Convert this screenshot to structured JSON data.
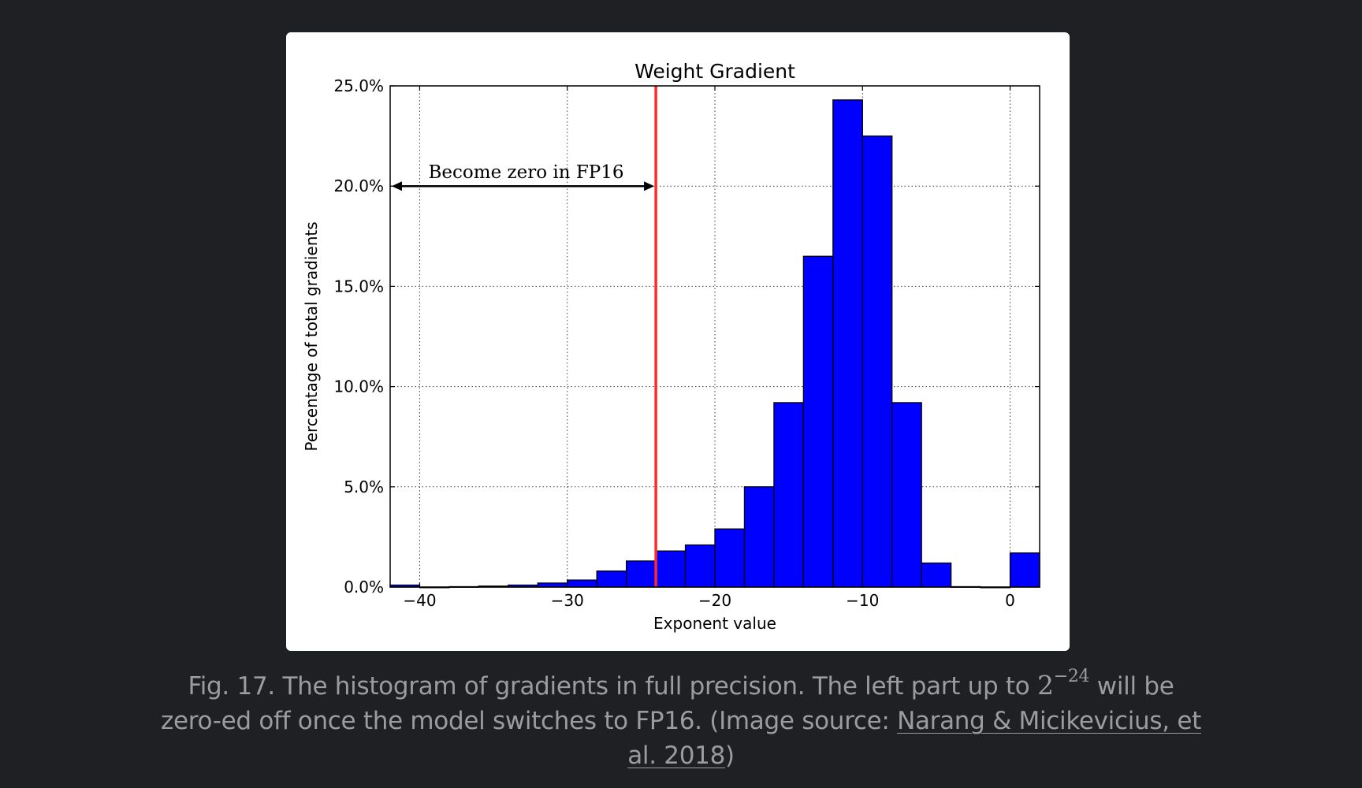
{
  "chart_data": {
    "type": "bar",
    "title": "Weight Gradient",
    "xlabel": "Exponent value",
    "ylabel": "Percentage of total gradients",
    "xlim": [
      -42,
      2
    ],
    "ylim": [
      0,
      25
    ],
    "grid": true,
    "grid_style": "dotted",
    "bar_color": "#0000ff",
    "bar_edge_color": "#000000",
    "xticks": [
      -40,
      -30,
      -20,
      -10,
      0
    ],
    "xtick_labels": [
      "−40",
      "−30",
      "−20",
      "−10",
      "0"
    ],
    "yticks": [
      0,
      5,
      10,
      15,
      20,
      25
    ],
    "ytick_labels": [
      "0.0%",
      "5.0%",
      "10.0%",
      "15.0%",
      "20.0%",
      "25.0%"
    ],
    "bin_width": 2,
    "bins": [
      {
        "x0": -42,
        "value": 0.1
      },
      {
        "x0": -40,
        "value": 0.0
      },
      {
        "x0": -38,
        "value": 0.02
      },
      {
        "x0": -36,
        "value": 0.05
      },
      {
        "x0": -34,
        "value": 0.1
      },
      {
        "x0": -32,
        "value": 0.2
      },
      {
        "x0": -30,
        "value": 0.35
      },
      {
        "x0": -28,
        "value": 0.8
      },
      {
        "x0": -26,
        "value": 1.3
      },
      {
        "x0": -24,
        "value": 1.8
      },
      {
        "x0": -22,
        "value": 2.1
      },
      {
        "x0": -20,
        "value": 2.9
      },
      {
        "x0": -18,
        "value": 5.0
      },
      {
        "x0": -16,
        "value": 9.2
      },
      {
        "x0": -14,
        "value": 16.5
      },
      {
        "x0": -12,
        "value": 24.3
      },
      {
        "x0": -10,
        "value": 22.5
      },
      {
        "x0": -8,
        "value": 9.2
      },
      {
        "x0": -6,
        "value": 1.2
      },
      {
        "x0": -4,
        "value": 0.02
      },
      {
        "x0": -2,
        "value": 0.0
      },
      {
        "x0": 0,
        "value": 1.7
      }
    ],
    "threshold_line": {
      "x": -24,
      "color": "#ff2a2a"
    },
    "annotation": {
      "text": "Become zero in FP16",
      "arrow_from_x": -42,
      "arrow_to_x": -24,
      "y": 20
    }
  },
  "caption": {
    "prefix": "Fig. 17. The histogram of gradients in full precision. The left part up to ",
    "math_base": "2",
    "math_exp": "−24",
    "mid": " will be zero-ed off once the model switches to FP16. (Image source: ",
    "link_text": "Narang & Micikevicius, et al. 2018",
    "suffix": ")"
  }
}
